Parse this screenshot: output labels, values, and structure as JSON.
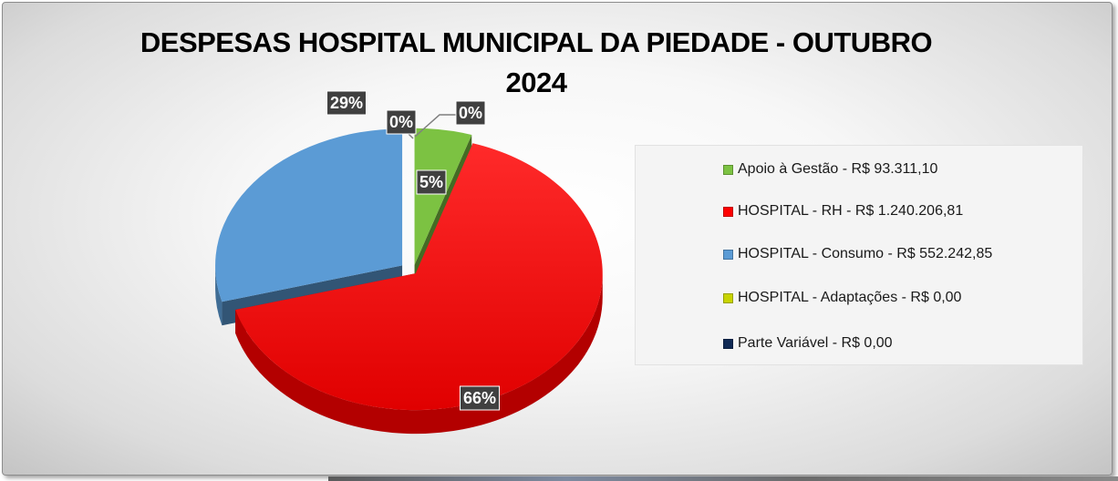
{
  "chart_data": {
    "type": "pie",
    "title": "DESPESAS HOSPITAL MUNICIPAL DA PIEDADE - OUTUBRO 2024",
    "title_lines": [
      "DESPESAS HOSPITAL MUNICIPAL DA PIEDADE - OUTUBRO",
      "2024"
    ],
    "legend_position": "right",
    "three_d": true,
    "slices": [
      {
        "label": "Apoio à Gestão - R$ 93.311,10",
        "value": 93311.1,
        "percent_label": "5%",
        "color": "#7cc242"
      },
      {
        "label": "HOSPITAL - RH - R$ 1.240.206,81",
        "value": 1240206.81,
        "percent_label": "66%",
        "color": "#ff0000"
      },
      {
        "label": "HOSPITAL - Consumo - R$ 552.242,85",
        "value": 552242.85,
        "percent_label": "29%",
        "color": "#5b9bd5"
      },
      {
        "label": "HOSPITAL - Adaptações - R$ 0,00",
        "value": 0,
        "percent_label": "0%",
        "color": "#c8d400"
      },
      {
        "label": "Parte Variável - R$ 0,00",
        "value": 0,
        "percent_label": "0%",
        "color": "#102a55"
      }
    ]
  }
}
